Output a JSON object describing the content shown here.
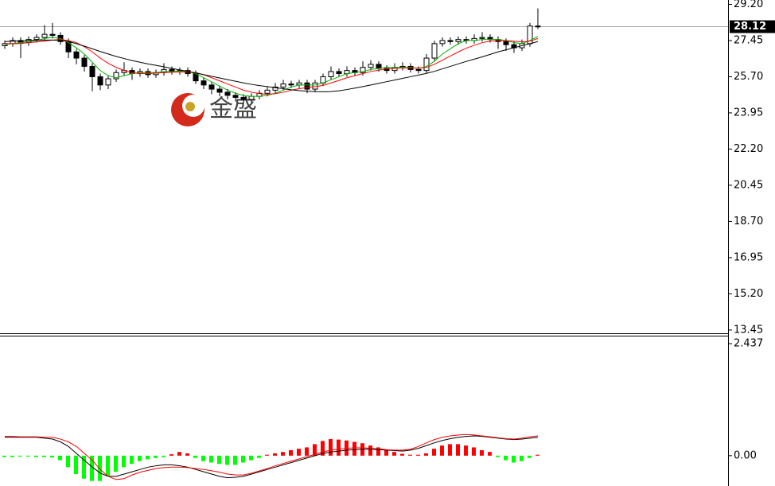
{
  "chart_data": [
    {
      "type": "candlestick",
      "open": [
        27.2,
        27.3,
        27.45,
        27.35,
        27.5,
        27.6,
        27.75,
        27.7,
        27.4,
        26.9,
        26.6,
        26.2,
        25.7,
        25.3,
        25.6,
        25.9,
        26.0,
        25.85,
        25.95,
        25.8,
        25.9,
        26.05,
        25.95,
        26.0,
        25.85,
        25.5,
        25.3,
        25.1,
        24.95,
        24.8,
        24.7,
        24.6,
        24.75,
        24.9,
        25.05,
        25.2,
        25.35,
        25.3,
        25.4,
        25.1,
        25.4,
        25.7,
        25.95,
        25.85,
        26.0,
        25.9,
        26.15,
        26.3,
        26.1,
        26.0,
        26.15,
        26.2,
        26.05,
        26.0,
        26.6,
        27.3,
        27.45,
        27.4,
        27.5,
        27.45,
        27.55,
        27.6,
        27.5,
        27.4,
        27.25,
        27.1,
        27.3,
        28.15
      ],
      "high": [
        27.45,
        27.6,
        27.6,
        27.65,
        27.75,
        28.2,
        28.3,
        27.85,
        27.55,
        27.05,
        26.75,
        26.35,
        25.85,
        25.75,
        26.05,
        26.4,
        26.15,
        26.1,
        26.1,
        26.05,
        26.35,
        26.2,
        26.15,
        26.15,
        26.0,
        25.65,
        25.45,
        25.25,
        25.1,
        24.95,
        24.85,
        24.9,
        25.05,
        25.2,
        25.4,
        25.55,
        25.5,
        25.55,
        25.55,
        25.55,
        25.85,
        26.2,
        26.1,
        26.2,
        26.15,
        26.45,
        26.5,
        26.45,
        26.25,
        26.35,
        26.4,
        26.35,
        26.2,
        26.8,
        27.45,
        27.6,
        27.6,
        27.65,
        27.65,
        27.75,
        27.85,
        27.75,
        27.65,
        27.55,
        27.4,
        27.5,
        28.3,
        29.0
      ],
      "low": [
        27.05,
        27.15,
        26.6,
        27.2,
        27.35,
        27.45,
        27.55,
        27.25,
        26.6,
        26.3,
        25.95,
        25.0,
        25.05,
        25.1,
        25.45,
        25.75,
        25.55,
        25.7,
        25.65,
        25.65,
        25.75,
        25.8,
        25.8,
        25.7,
        25.35,
        25.1,
        24.85,
        24.75,
        24.6,
        24.5,
        24.4,
        24.45,
        24.6,
        24.75,
        24.9,
        25.05,
        25.15,
        25.15,
        24.9,
        24.95,
        25.25,
        25.55,
        25.7,
        25.7,
        25.75,
        25.75,
        26.0,
        25.95,
        25.85,
        25.85,
        26.0,
        25.9,
        25.85,
        25.85,
        26.45,
        27.15,
        27.25,
        27.25,
        27.3,
        27.3,
        27.4,
        27.35,
        27.05,
        26.95,
        26.85,
        26.95,
        27.15,
        28.0
      ],
      "close": [
        27.3,
        27.45,
        27.35,
        27.5,
        27.6,
        27.75,
        27.7,
        27.4,
        26.9,
        26.6,
        26.2,
        25.7,
        25.3,
        25.6,
        25.9,
        26.0,
        25.85,
        25.95,
        25.8,
        25.9,
        26.05,
        25.95,
        26.0,
        25.85,
        25.5,
        25.3,
        25.1,
        24.95,
        24.8,
        24.7,
        24.6,
        24.75,
        24.9,
        25.05,
        25.2,
        25.35,
        25.3,
        25.4,
        25.1,
        25.4,
        25.7,
        25.95,
        25.85,
        26.0,
        25.9,
        26.15,
        26.3,
        26.1,
        26.0,
        26.15,
        26.2,
        26.05,
        26.0,
        26.6,
        27.3,
        27.45,
        27.4,
        27.5,
        27.45,
        27.55,
        27.6,
        27.5,
        27.4,
        27.25,
        27.1,
        27.3,
        28.15,
        28.12
      ],
      "up_color": "#ffffff",
      "down_color": "#000000",
      "overlays": [
        {
          "color": "#00b400",
          "values": [
            27.25,
            27.3,
            27.35,
            27.4,
            27.45,
            27.55,
            27.6,
            27.55,
            27.35,
            27.1,
            26.8,
            26.4,
            26.0,
            25.75,
            25.65,
            25.75,
            25.85,
            25.9,
            25.9,
            25.9,
            25.95,
            25.95,
            25.97,
            25.95,
            25.85,
            25.65,
            25.45,
            25.25,
            25.05,
            24.9,
            24.8,
            24.75,
            24.75,
            24.8,
            24.9,
            25.05,
            25.2,
            25.3,
            25.3,
            25.3,
            25.4,
            25.55,
            25.7,
            25.85,
            25.9,
            25.95,
            26.05,
            26.1,
            26.15,
            26.15,
            26.15,
            26.15,
            26.1,
            26.2,
            26.45,
            26.8,
            27.05,
            27.3,
            27.45,
            27.45,
            27.5,
            27.5,
            27.5,
            27.45,
            27.35,
            27.3,
            27.45,
            27.65
          ]
        },
        {
          "color": "#ff0000",
          "values": [
            27.3,
            27.3,
            27.3,
            27.35,
            27.38,
            27.42,
            27.47,
            27.5,
            27.45,
            27.35,
            27.15,
            26.9,
            26.6,
            26.35,
            26.15,
            26.0,
            25.9,
            25.85,
            25.85,
            25.87,
            25.9,
            25.92,
            25.93,
            25.93,
            25.9,
            25.8,
            25.65,
            25.5,
            25.35,
            25.2,
            25.05,
            24.95,
            24.88,
            24.85,
            24.88,
            24.95,
            25.05,
            25.12,
            25.18,
            25.22,
            25.28,
            25.4,
            25.52,
            25.65,
            25.75,
            25.85,
            25.95,
            26.02,
            26.08,
            26.1,
            26.12,
            26.13,
            26.12,
            26.15,
            26.3,
            26.5,
            26.7,
            26.9,
            27.08,
            27.22,
            27.35,
            27.42,
            27.45,
            27.45,
            27.42,
            27.38,
            27.42,
            27.55
          ]
        },
        {
          "color": "#000000",
          "values": [
            27.4,
            27.42,
            27.44,
            27.45,
            27.46,
            27.47,
            27.47,
            27.46,
            27.4,
            27.3,
            27.18,
            27.05,
            26.92,
            26.8,
            26.68,
            26.58,
            26.48,
            26.4,
            26.32,
            26.25,
            26.18,
            26.1,
            26.03,
            25.96,
            25.88,
            25.8,
            25.72,
            25.64,
            25.56,
            25.48,
            25.4,
            25.33,
            25.27,
            25.22,
            25.17,
            25.12,
            25.07,
            25.03,
            25.0,
            24.98,
            24.97,
            24.98,
            25.02,
            25.08,
            25.15,
            25.22,
            25.3,
            25.38,
            25.46,
            25.54,
            25.62,
            25.7,
            25.78,
            25.86,
            25.96,
            26.08,
            26.2,
            26.32,
            26.44,
            26.55,
            26.66,
            26.78,
            26.9,
            27.0,
            27.1,
            27.2,
            27.3,
            27.4
          ]
        }
      ],
      "ylim": [
        13.33,
        29.41
      ],
      "yticks": [
        {
          "value": 29.2,
          "label": "29.20"
        },
        27.45,
        {
          "value": 25.7,
          "label": "25.70"
        },
        23.95,
        {
          "value": 22.2,
          "label": "22.20"
        },
        20.45,
        {
          "value": 18.7,
          "label": "18.70"
        },
        16.95,
        {
          "value": 15.2,
          "label": "15.20"
        },
        13.45
      ],
      "current_price": 28.12,
      "watermark": "金盛"
    },
    {
      "type": "macd",
      "histogram": [
        -0.03,
        -0.03,
        -0.02,
        -0.02,
        -0.03,
        -0.03,
        -0.04,
        -0.1,
        -0.25,
        -0.4,
        -0.5,
        -0.55,
        -0.55,
        -0.45,
        -0.35,
        -0.25,
        -0.18,
        -0.12,
        -0.08,
        -0.05,
        -0.03,
        0.03,
        0.08,
        0.05,
        -0.05,
        -0.12,
        -0.15,
        -0.18,
        -0.2,
        -0.2,
        -0.15,
        -0.1,
        -0.05,
        0.02,
        0.05,
        0.08,
        0.12,
        0.15,
        0.18,
        0.25,
        0.32,
        0.36,
        0.35,
        0.33,
        0.3,
        0.27,
        0.22,
        0.18,
        0.12,
        0.08,
        0.04,
        0.02,
        0.02,
        0.05,
        0.15,
        0.22,
        0.25,
        0.25,
        0.22,
        0.18,
        0.12,
        0.08,
        -0.03,
        -0.1,
        -0.15,
        -0.12,
        -0.05,
        0.02
      ],
      "up_color": "#ff0000",
      "down_color": "#00ff00",
      "lines": [
        {
          "color": "#000000",
          "values": [
            0.4,
            0.4,
            0.4,
            0.4,
            0.4,
            0.38,
            0.36,
            0.3,
            0.2,
            0.05,
            -0.1,
            -0.25,
            -0.38,
            -0.45,
            -0.45,
            -0.4,
            -0.35,
            -0.3,
            -0.25,
            -0.22,
            -0.2,
            -0.2,
            -0.22,
            -0.25,
            -0.3,
            -0.35,
            -0.4,
            -0.45,
            -0.48,
            -0.47,
            -0.45,
            -0.4,
            -0.35,
            -0.3,
            -0.25,
            -0.2,
            -0.15,
            -0.1,
            -0.05,
            0.0,
            0.05,
            0.08,
            0.1,
            0.12,
            0.13,
            0.14,
            0.14,
            0.13,
            0.12,
            0.11,
            0.1,
            0.12,
            0.16,
            0.22,
            0.28,
            0.33,
            0.37,
            0.4,
            0.42,
            0.43,
            0.42,
            0.4,
            0.38,
            0.36,
            0.35,
            0.36,
            0.38,
            0.4
          ]
        },
        {
          "color": "#ff0000",
          "values": [
            0.42,
            0.42,
            0.41,
            0.41,
            0.41,
            0.4,
            0.4,
            0.36,
            0.3,
            0.2,
            0.05,
            -0.1,
            -0.3,
            -0.45,
            -0.52,
            -0.5,
            -0.42,
            -0.36,
            -0.32,
            -0.28,
            -0.26,
            -0.25,
            -0.25,
            -0.26,
            -0.28,
            -0.3,
            -0.33,
            -0.36,
            -0.4,
            -0.42,
            -0.42,
            -0.38,
            -0.33,
            -0.28,
            -0.22,
            -0.17,
            -0.12,
            -0.07,
            -0.02,
            0.03,
            0.08,
            0.12,
            0.14,
            0.16,
            0.17,
            0.17,
            0.16,
            0.15,
            0.13,
            0.12,
            0.12,
            0.14,
            0.2,
            0.28,
            0.35,
            0.4,
            0.43,
            0.45,
            0.46,
            0.45,
            0.43,
            0.41,
            0.39,
            0.37,
            0.36,
            0.38,
            0.41,
            0.43
          ]
        }
      ],
      "ylim": [
        -0.66,
        2.61
      ],
      "yticks": [
        2.437,
        {
          "value": 0,
          "label": "0.00"
        }
      ]
    }
  ]
}
